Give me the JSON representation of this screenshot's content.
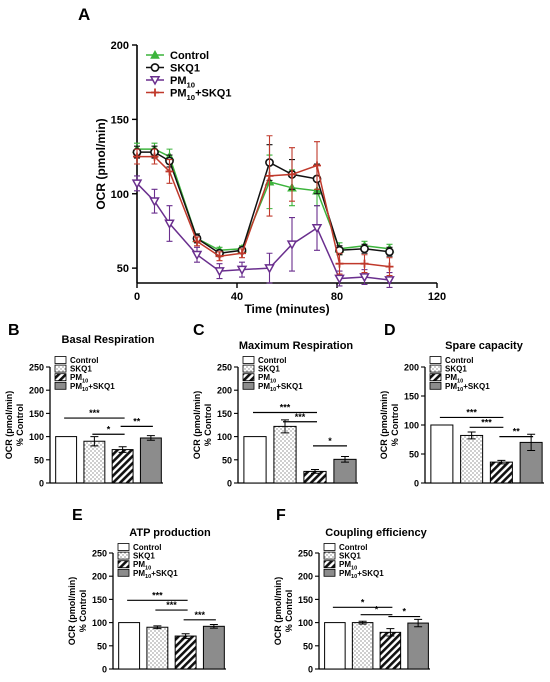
{
  "colors": {
    "control": "#3cb43c",
    "skq1": "#111111",
    "pm10": "#6a2f8e",
    "pm10_skq1": "#c0392b",
    "bar_fill_control": "#ffffff",
    "bar_fill_pm10_skq1": "#8c8c8c",
    "axis": "#000000"
  },
  "chart_data": [
    {
      "id": "A",
      "panel_letter": "A",
      "type": "line",
      "title": "",
      "xlabel": "Time (minutes)",
      "ylabel": "OCR (pmol/min)",
      "xlim": [
        0,
        120
      ],
      "ylim": [
        40,
        200
      ],
      "xticks": [
        0,
        40,
        80,
        120
      ],
      "yticks": [
        50,
        100,
        150,
        200
      ],
      "legend_position": "top-left",
      "series": [
        {
          "name": "Control",
          "key": "control",
          "marker": "triangle-up",
          "x": [
            0,
            7,
            13,
            24,
            33,
            42,
            53,
            62,
            72,
            81,
            91,
            101
          ],
          "y": [
            130,
            130,
            125,
            70,
            62,
            63,
            108,
            104,
            102,
            63,
            65,
            63
          ],
          "err": [
            4,
            4,
            5,
            3,
            2,
            2,
            18,
            12,
            10,
            4,
            3,
            3
          ]
        },
        {
          "name": "SKQ1",
          "key": "skq1",
          "marker": "circle",
          "x": [
            0,
            7,
            13,
            24,
            33,
            42,
            53,
            62,
            72,
            81,
            91,
            101
          ],
          "y": [
            128,
            128,
            122,
            70,
            60,
            62,
            121,
            113,
            110,
            62,
            63,
            61
          ],
          "err": [
            4,
            4,
            4,
            3,
            2,
            2,
            12,
            10,
            10,
            3,
            3,
            3
          ]
        },
        {
          "name": "PM",
          "name_sub": "10",
          "key": "pm10",
          "marker": "triangle-down",
          "x": [
            0,
            7,
            13,
            24,
            33,
            42,
            53,
            62,
            72,
            81,
            91,
            101
          ],
          "y": [
            107,
            95,
            80,
            59,
            48,
            49,
            50,
            66,
            77,
            43,
            44,
            42
          ],
          "err": [
            5,
            8,
            12,
            5,
            5,
            5,
            10,
            18,
            15,
            5,
            5,
            5
          ]
        },
        {
          "name": "PM",
          "name_sub": "10",
          "name_suffix": "+SKQ1",
          "key": "pm10_skq1",
          "marker": "plus",
          "x": [
            0,
            7,
            13,
            24,
            33,
            42,
            53,
            62,
            72,
            81,
            91,
            101
          ],
          "y": [
            125,
            125,
            115,
            68,
            58,
            60,
            112,
            113,
            119,
            53,
            53,
            51
          ],
          "err": [
            5,
            5,
            8,
            3,
            3,
            3,
            27,
            18,
            16,
            7,
            6,
            6
          ]
        }
      ]
    },
    {
      "id": "B",
      "panel_letter": "B",
      "type": "bar",
      "title": "Basal Respiration",
      "ylabel": "OCR (pmol/min)",
      "ylabel2": "% Control",
      "ylim": [
        0,
        250
      ],
      "yticks": [
        0,
        50,
        100,
        150,
        200,
        250
      ],
      "categories": [
        "Control",
        "SKQ1",
        "PM",
        "PM"
      ],
      "category_sub": [
        "",
        "",
        "10",
        "10"
      ],
      "category_suffix": [
        "",
        "",
        "",
        "+SKQ1"
      ],
      "values": [
        100,
        90,
        72,
        97
      ],
      "errors": [
        0,
        10,
        6,
        5
      ],
      "significance": [
        {
          "from": 0,
          "to": 2,
          "label": "***",
          "y": 140
        },
        {
          "from": 1,
          "to": 2,
          "label": "*",
          "y": 105
        },
        {
          "from": 2,
          "to": 3,
          "label": "**",
          "y": 122
        }
      ]
    },
    {
      "id": "C",
      "panel_letter": "C",
      "type": "bar",
      "title": "Maximum Respiration",
      "ylabel": "OCR (pmol/min)",
      "ylabel2": "% Control",
      "ylim": [
        0,
        250
      ],
      "yticks": [
        0,
        50,
        100,
        150,
        200,
        250
      ],
      "categories": [
        "Control",
        "SKQ1",
        "PM",
        "PM"
      ],
      "category_sub": [
        "",
        "",
        "10",
        "10"
      ],
      "category_suffix": [
        "",
        "",
        "",
        "+SKQ1"
      ],
      "values": [
        100,
        122,
        25,
        51
      ],
      "errors": [
        0,
        14,
        4,
        6
      ],
      "significance": [
        {
          "from": 0,
          "to": 2,
          "label": "***",
          "y": 152
        },
        {
          "from": 1,
          "to": 2,
          "label": "***",
          "y": 132
        },
        {
          "from": 2,
          "to": 3,
          "label": "*",
          "y": 80
        }
      ]
    },
    {
      "id": "D",
      "panel_letter": "D",
      "type": "bar",
      "title": "Spare capacity",
      "ylabel": "OCR (pmol/min)",
      "ylabel2": "% Control",
      "ylim": [
        0,
        200
      ],
      "yticks": [
        0,
        50,
        100,
        150,
        200
      ],
      "categories": [
        "Control",
        "SKQ1",
        "PM",
        "PM"
      ],
      "category_sub": [
        "",
        "",
        "10",
        "10"
      ],
      "category_suffix": [
        "",
        "",
        "",
        "+SKQ1"
      ],
      "values": [
        100,
        82,
        36,
        70
      ],
      "errors": [
        0,
        6,
        3,
        14
      ],
      "significance": [
        {
          "from": 0,
          "to": 2,
          "label": "***",
          "y": 113
        },
        {
          "from": 1,
          "to": 2,
          "label": "***",
          "y": 96
        },
        {
          "from": 2,
          "to": 3,
          "label": "**",
          "y": 80
        }
      ]
    },
    {
      "id": "E",
      "panel_letter": "E",
      "type": "bar",
      "title": "ATP production",
      "ylabel": "OCR (pmol/min)",
      "ylabel2": "% Control",
      "ylim": [
        0,
        250
      ],
      "yticks": [
        0,
        50,
        100,
        150,
        200,
        250
      ],
      "categories": [
        "Control",
        "SKQ1",
        "PM",
        "PM"
      ],
      "category_sub": [
        "",
        "",
        "10",
        "10"
      ],
      "category_suffix": [
        "",
        "",
        "",
        "+SKQ1"
      ],
      "values": [
        100,
        90,
        71,
        92
      ],
      "errors": [
        0,
        3,
        5,
        4
      ],
      "significance": [
        {
          "from": 0,
          "to": 2,
          "label": "***",
          "y": 148
        },
        {
          "from": 1,
          "to": 2,
          "label": "***",
          "y": 127
        },
        {
          "from": 2,
          "to": 3,
          "label": "***",
          "y": 106
        }
      ]
    },
    {
      "id": "F",
      "panel_letter": "F",
      "type": "bar",
      "title": "Coupling efficiency",
      "ylabel": "OCR (pmol/min)",
      "ylabel2": "% Control",
      "ylim": [
        0,
        250
      ],
      "yticks": [
        0,
        50,
        100,
        150,
        200,
        250
      ],
      "categories": [
        "Control",
        "SKQ1",
        "PM",
        "PM"
      ],
      "category_sub": [
        "",
        "",
        "10",
        "10"
      ],
      "category_suffix": [
        "",
        "",
        "",
        "+SKQ1"
      ],
      "values": [
        100,
        100,
        79,
        99
      ],
      "errors": [
        0,
        3,
        8,
        8
      ],
      "significance": [
        {
          "from": 0,
          "to": 2,
          "label": "*",
          "y": 133
        },
        {
          "from": 1,
          "to": 2,
          "label": "*",
          "y": 117
        },
        {
          "from": 2,
          "to": 3,
          "label": "*",
          "y": 113
        }
      ]
    }
  ]
}
